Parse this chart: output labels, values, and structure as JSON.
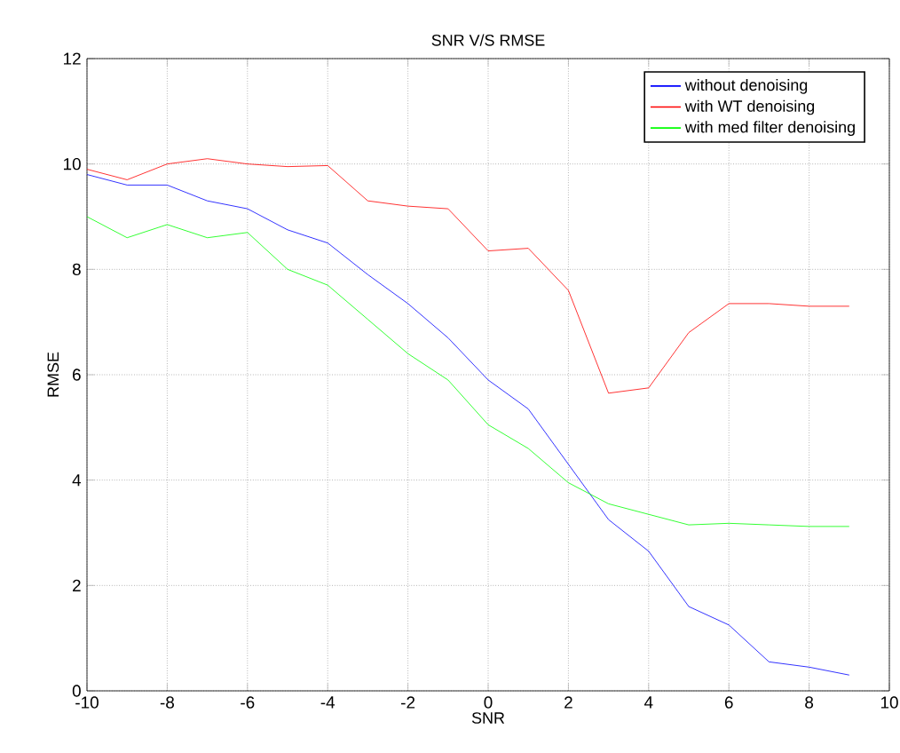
{
  "chart_data": {
    "type": "line",
    "title": "SNR V/S RMSE",
    "xlabel": "SNR",
    "ylabel": "RMSE",
    "x": [
      -10,
      -9,
      -8,
      -7,
      -6,
      -5,
      -4,
      -3,
      -2,
      -1,
      0,
      1,
      2,
      3,
      4,
      5,
      6,
      7,
      8,
      9
    ],
    "series": [
      {
        "name": "without denoising",
        "color": "#0000ff",
        "values": [
          9.8,
          9.6,
          9.6,
          9.3,
          9.15,
          8.75,
          8.5,
          7.9,
          7.35,
          6.7,
          5.9,
          5.35,
          4.3,
          3.25,
          2.65,
          1.6,
          1.25,
          0.55,
          0.45,
          0.3
        ]
      },
      {
        "name": "with WT denoising",
        "color": "#ff0000",
        "values": [
          9.9,
          9.7,
          10.0,
          10.1,
          10.0,
          9.95,
          9.97,
          9.3,
          9.2,
          9.15,
          8.35,
          8.4,
          7.6,
          5.65,
          5.75,
          6.8,
          7.35,
          7.35,
          7.3,
          7.3
        ]
      },
      {
        "name": "with med filter denoising",
        "color": "#00ff00",
        "values": [
          9.0,
          8.6,
          8.85,
          8.6,
          8.7,
          8.0,
          7.7,
          7.05,
          6.4,
          5.9,
          5.05,
          4.6,
          3.95,
          3.55,
          3.35,
          3.15,
          3.18,
          3.15,
          3.12,
          3.12
        ]
      }
    ],
    "xlim": [
      -10,
      10
    ],
    "ylim": [
      0,
      12
    ],
    "xticks": [
      -10,
      -8,
      -6,
      -4,
      -2,
      0,
      2,
      4,
      6,
      8,
      10
    ],
    "yticks": [
      0,
      2,
      4,
      6,
      8,
      10,
      12
    ],
    "grid": true,
    "legend": "top right"
  }
}
